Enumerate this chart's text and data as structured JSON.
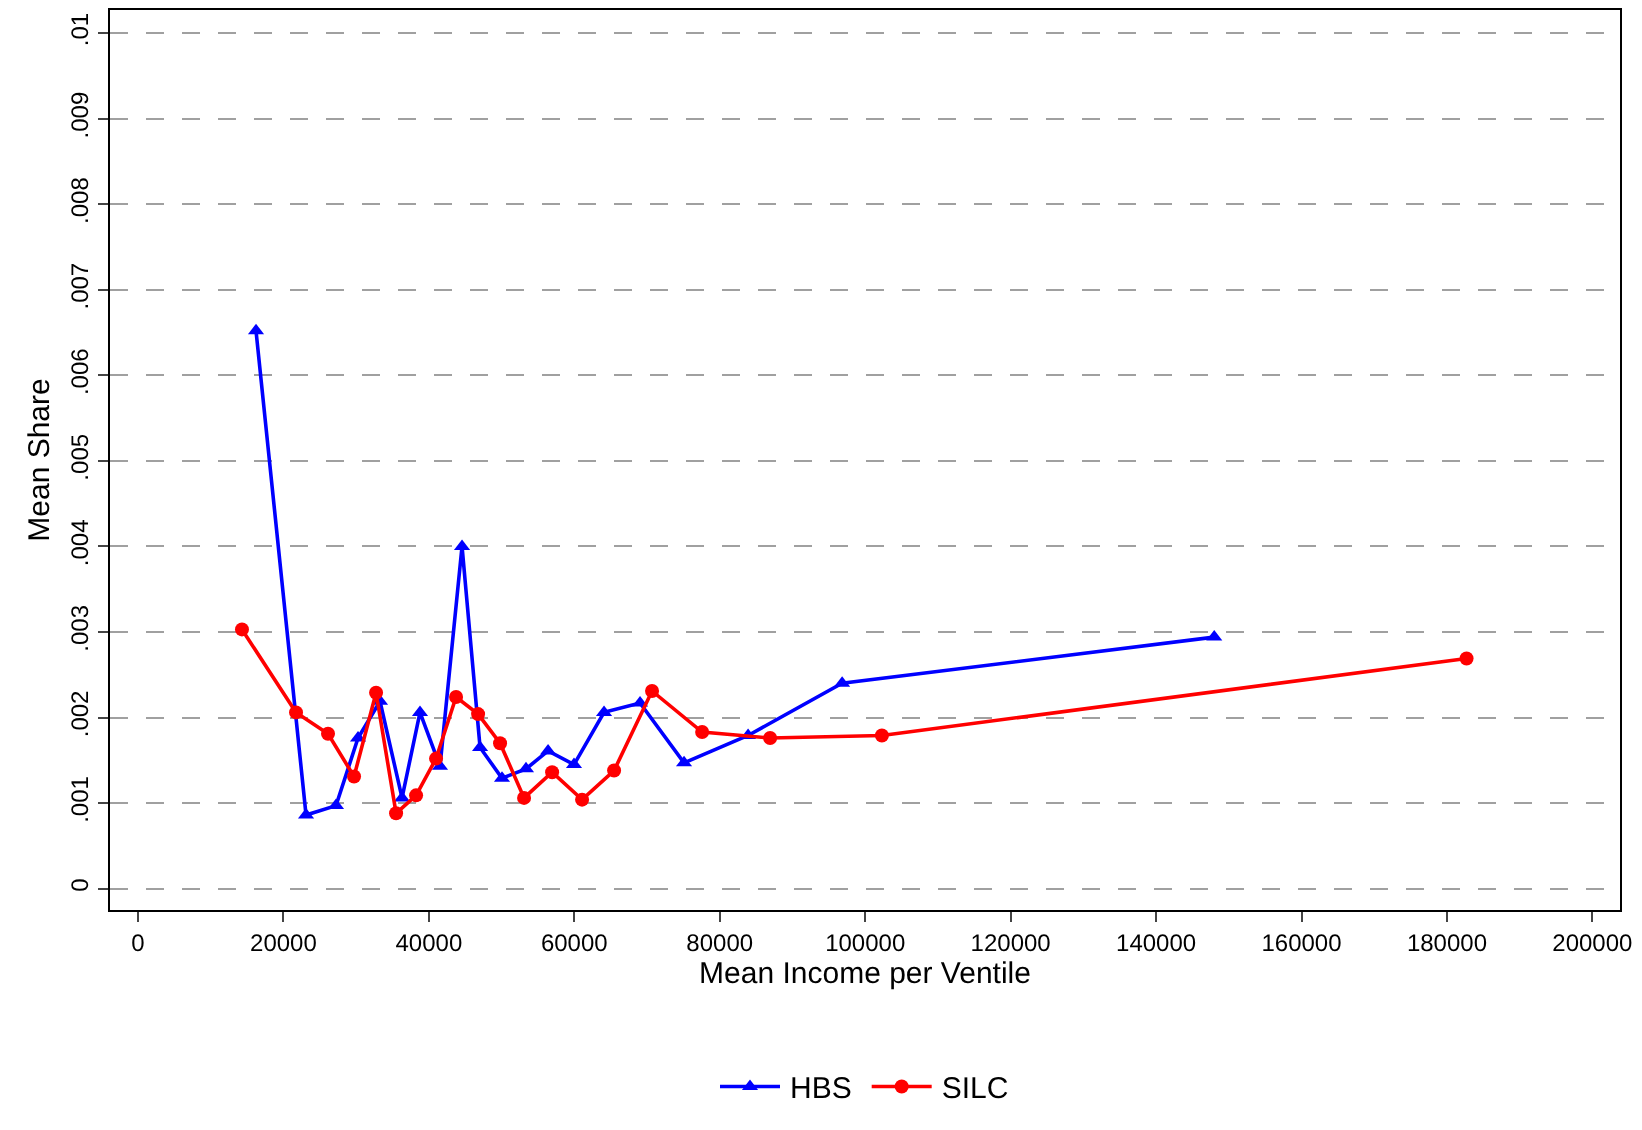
{
  "chart_data": {
    "type": "line",
    "xlabel": "Mean Income per Ventile",
    "ylabel": "Mean Share",
    "xlim": [
      -3850,
      203800
    ],
    "ylim": [
      -0.00025,
      0.01027
    ],
    "xticks": [
      0,
      20000,
      40000,
      60000,
      80000,
      100000,
      120000,
      140000,
      160000,
      180000,
      200000
    ],
    "yticks": [
      {
        "value": 0,
        "label": "0"
      },
      {
        "value": 0.001,
        "label": ".001"
      },
      {
        "value": 0.002,
        "label": ".002"
      },
      {
        "value": 0.003,
        "label": ".003"
      },
      {
        "value": 0.004,
        "label": ".004"
      },
      {
        "value": 0.005,
        "label": ".005"
      },
      {
        "value": 0.006,
        "label": ".006"
      },
      {
        "value": 0.007,
        "label": ".007"
      },
      {
        "value": 0.008,
        "label": ".008"
      },
      {
        "value": 0.009,
        "label": ".009"
      },
      {
        "value": 0.01,
        "label": ".01"
      }
    ],
    "grid": "y",
    "legend": "bottom",
    "series": [
      {
        "name": "HBS",
        "color": "#0000ff",
        "marker": "triangle",
        "x": [
          16230,
          23110,
          27230,
          30260,
          33280,
          36310,
          38780,
          41530,
          44560,
          47040,
          50060,
          53360,
          56390,
          59960,
          64090,
          69040,
          75090,
          83900,
          96830,
          148000
        ],
        "values": [
          0.00652,
          0.00086,
          0.00097,
          0.00176,
          0.00219,
          0.00106,
          0.00206,
          0.00143,
          0.004,
          0.00165,
          0.00129,
          0.0014,
          0.00161,
          0.00145,
          0.00206,
          0.00217,
          0.00147,
          0.00179,
          0.0024,
          0.00294
        ]
      },
      {
        "name": "SILC",
        "color": "#ff0000",
        "marker": "circle",
        "x": [
          14300,
          21730,
          26130,
          29710,
          32740,
          35490,
          38240,
          40990,
          43740,
          46770,
          49790,
          53090,
          56950,
          61070,
          65470,
          70690,
          77580,
          86930,
          102300,
          182700
        ],
        "values": [
          0.00303,
          0.00206,
          0.00181,
          0.00131,
          0.00229,
          0.00088,
          0.00109,
          0.00152,
          0.00224,
          0.00204,
          0.0017,
          0.00106,
          0.00136,
          0.00104,
          0.00138,
          0.00231,
          0.00183,
          0.00176,
          0.00179,
          0.00269
        ]
      }
    ]
  }
}
